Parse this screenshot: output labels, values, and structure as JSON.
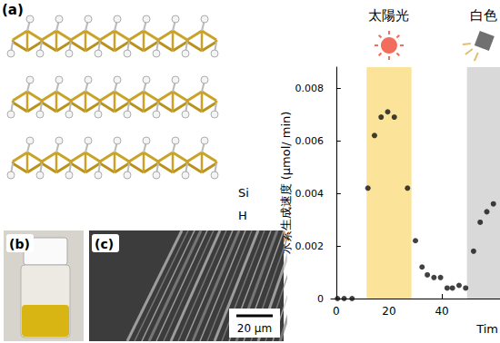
{
  "figure_labels": {
    "a": "(a)",
    "b": "(b)",
    "c": "(c)",
    "atoms": [
      "Si",
      "H"
    ],
    "scale_bar": "20 µm"
  },
  "chart_data": {
    "type": "scatter",
    "y_label": "水素生成速度 (µmol/ min)",
    "x_label": "Tim",
    "x": [
      0.5,
      3,
      6,
      12,
      14.5,
      17,
      19.5,
      22,
      27,
      30,
      32.5,
      34.5,
      37,
      39.5,
      42,
      44,
      46.5,
      49,
      52,
      54.5,
      57,
      59.5
    ],
    "values": [
      0,
      0,
      0,
      0.0042,
      0.0062,
      0.0069,
      0.0071,
      0.0069,
      0.0042,
      0.0022,
      0.0012,
      0.0009,
      0.0008,
      0.0008,
      0.0004,
      0.0004,
      0.0005,
      0.0004,
      0.0018,
      0.0029,
      0.0033,
      0.0036
    ],
    "color": "#111111",
    "marker": "circle",
    "xlim": [
      -2,
      62
    ],
    "xticks": [
      0,
      20,
      40
    ],
    "ylim": [
      0,
      0.0088
    ],
    "yticks": [
      0,
      0.002,
      0.004,
      0.006,
      0.008
    ],
    "grid": false,
    "bands": [
      {
        "label": "太陽光",
        "from": 11.5,
        "to": 28.5,
        "color": "#fbe49a"
      },
      {
        "label": "白色",
        "from": 49.5,
        "to": 62,
        "color": "#d9d9d9"
      }
    ]
  }
}
